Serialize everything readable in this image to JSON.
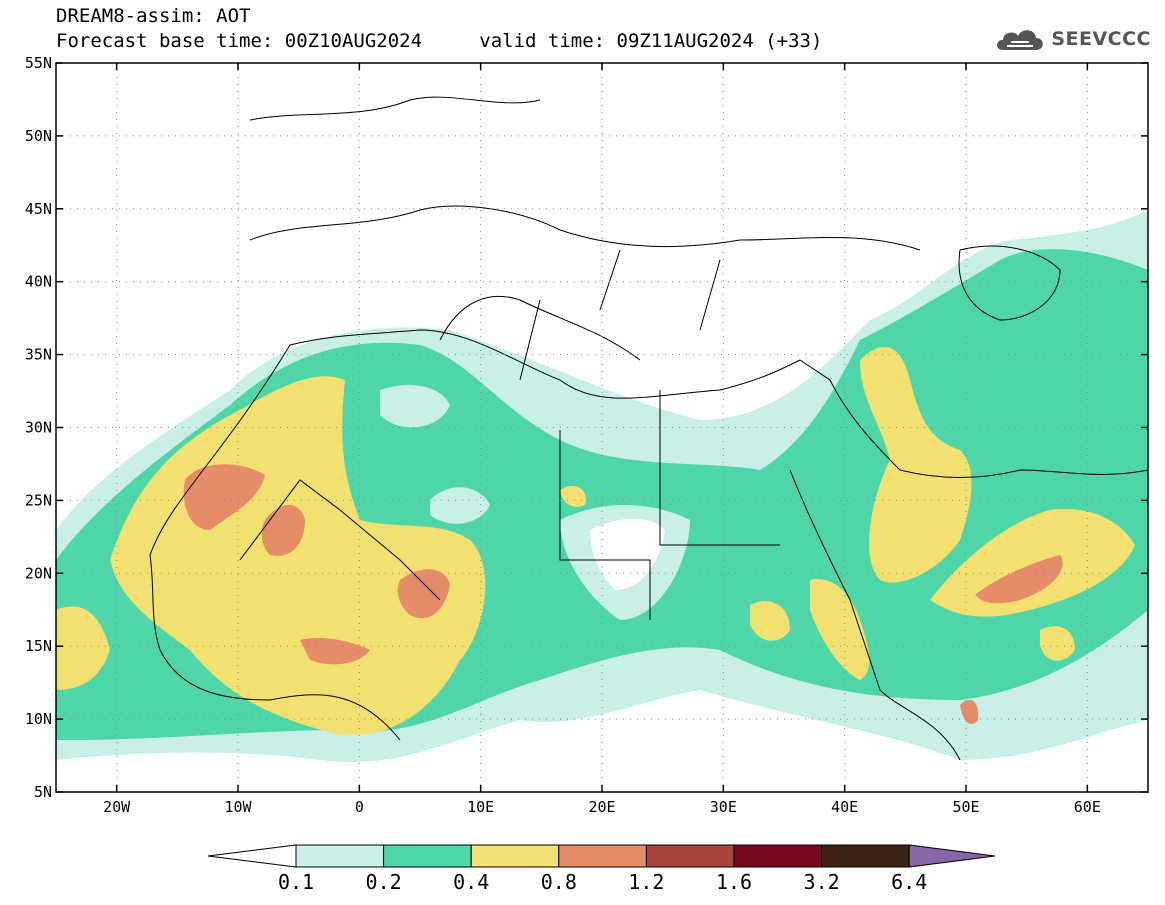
{
  "header": {
    "title": "DREAM8-assim: AOT",
    "base_time_label": "Forecast base time: 00Z10AUG2024",
    "valid_time_label": "valid time: 09Z11AUG2024 (+33)"
  },
  "logo": {
    "text": "SEEVCCC",
    "icon": "cloud-icon"
  },
  "map": {
    "lon_ticks": [
      "20W",
      "10W",
      "0",
      "10E",
      "20E",
      "30E",
      "40E",
      "50E",
      "60E"
    ],
    "lat_ticks": [
      "55N",
      "50N",
      "45N",
      "40N",
      "35N",
      "30N",
      "25N",
      "20N",
      "15N",
      "10N",
      "5N"
    ],
    "lon_range": [
      -25,
      65
    ],
    "lat_range": [
      5,
      55
    ],
    "grid": "dotted"
  },
  "colorbar": {
    "colors": [
      "#c8f0e8",
      "#4fd6a8",
      "#f2e070",
      "#e68c68",
      "#a9463b",
      "#7a0a20",
      "#3c2414",
      "#8864a8"
    ],
    "labels": [
      "0.1",
      "0.2",
      "0.4",
      "0.8",
      "1.2",
      "1.6",
      "3.2",
      "6.4"
    ]
  }
}
